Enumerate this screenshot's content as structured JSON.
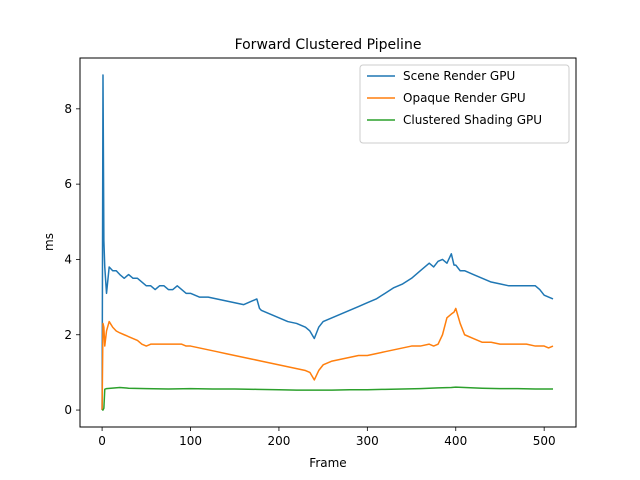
{
  "chart_data": {
    "type": "line",
    "title": "Forward Clustered Pipeline",
    "xlabel": "Frame",
    "ylabel": "ms",
    "xlim": [
      -25,
      536
    ],
    "ylim": [
      -0.45,
      9.35
    ],
    "xticks": [
      0,
      100,
      200,
      300,
      400,
      500
    ],
    "yticks": [
      0,
      2,
      4,
      6,
      8
    ],
    "grid": false,
    "legend_position": "top-right",
    "series": [
      {
        "name": "Scene Render GPU",
        "color": "#1f77b4",
        "x": [
          0,
          1,
          2,
          3,
          5,
          8,
          12,
          16,
          20,
          25,
          30,
          35,
          40,
          45,
          50,
          55,
          60,
          65,
          70,
          75,
          80,
          85,
          90,
          95,
          100,
          110,
          120,
          130,
          140,
          150,
          160,
          170,
          175,
          178,
          180,
          190,
          200,
          210,
          220,
          230,
          235,
          240,
          245,
          250,
          260,
          270,
          280,
          290,
          300,
          310,
          320,
          330,
          340,
          350,
          360,
          370,
          375,
          380,
          385,
          390,
          395,
          398,
          400,
          405,
          410,
          420,
          430,
          440,
          450,
          460,
          470,
          480,
          490,
          495,
          500,
          505,
          510
        ],
        "values": [
          0.0,
          8.9,
          4.5,
          3.8,
          3.1,
          3.8,
          3.7,
          3.7,
          3.6,
          3.5,
          3.6,
          3.5,
          3.5,
          3.4,
          3.3,
          3.3,
          3.2,
          3.3,
          3.3,
          3.2,
          3.2,
          3.3,
          3.2,
          3.1,
          3.1,
          3.0,
          3.0,
          2.95,
          2.9,
          2.85,
          2.8,
          2.9,
          2.95,
          2.7,
          2.65,
          2.55,
          2.45,
          2.35,
          2.3,
          2.2,
          2.1,
          1.9,
          2.2,
          2.35,
          2.45,
          2.55,
          2.65,
          2.75,
          2.85,
          2.95,
          3.1,
          3.25,
          3.35,
          3.5,
          3.7,
          3.9,
          3.8,
          3.95,
          4.0,
          3.9,
          4.15,
          3.85,
          3.85,
          3.7,
          3.7,
          3.6,
          3.5,
          3.4,
          3.35,
          3.3,
          3.3,
          3.3,
          3.3,
          3.2,
          3.05,
          3.0,
          2.95
        ]
      },
      {
        "name": "Opaque Render GPU",
        "color": "#ff7f0e",
        "x": [
          0,
          1,
          2,
          3,
          5,
          8,
          12,
          16,
          20,
          25,
          30,
          35,
          40,
          45,
          50,
          55,
          60,
          65,
          70,
          75,
          80,
          85,
          90,
          95,
          100,
          110,
          120,
          130,
          140,
          150,
          160,
          170,
          180,
          190,
          200,
          210,
          220,
          230,
          235,
          240,
          245,
          250,
          260,
          270,
          280,
          290,
          300,
          310,
          320,
          330,
          340,
          350,
          360,
          370,
          375,
          380,
          385,
          390,
          395,
          398,
          400,
          405,
          410,
          420,
          430,
          440,
          450,
          460,
          470,
          480,
          490,
          495,
          500,
          505,
          510
        ],
        "values": [
          0.0,
          2.3,
          2.2,
          1.7,
          2.1,
          2.35,
          2.2,
          2.1,
          2.05,
          2.0,
          1.95,
          1.9,
          1.85,
          1.75,
          1.7,
          1.75,
          1.75,
          1.75,
          1.75,
          1.75,
          1.75,
          1.75,
          1.75,
          1.7,
          1.7,
          1.65,
          1.6,
          1.55,
          1.5,
          1.45,
          1.4,
          1.35,
          1.3,
          1.25,
          1.2,
          1.15,
          1.1,
          1.05,
          1.0,
          0.8,
          1.05,
          1.2,
          1.3,
          1.35,
          1.4,
          1.45,
          1.45,
          1.5,
          1.55,
          1.6,
          1.65,
          1.7,
          1.7,
          1.75,
          1.7,
          1.75,
          2.0,
          2.45,
          2.55,
          2.6,
          2.7,
          2.3,
          2.0,
          1.9,
          1.8,
          1.8,
          1.75,
          1.75,
          1.75,
          1.75,
          1.7,
          1.7,
          1.7,
          1.65,
          1.7
        ]
      },
      {
        "name": "Clustered Shading GPU",
        "color": "#2ca02c",
        "x": [
          0,
          1,
          2,
          3,
          5,
          10,
          20,
          30,
          50,
          75,
          100,
          125,
          150,
          175,
          200,
          220,
          240,
          260,
          280,
          300,
          320,
          340,
          360,
          380,
          395,
          400,
          410,
          430,
          450,
          470,
          490,
          500,
          510
        ],
        "values": [
          0.0,
          0.0,
          0.05,
          0.55,
          0.57,
          0.58,
          0.6,
          0.58,
          0.57,
          0.56,
          0.57,
          0.56,
          0.56,
          0.55,
          0.54,
          0.53,
          0.53,
          0.53,
          0.54,
          0.54,
          0.55,
          0.56,
          0.57,
          0.59,
          0.6,
          0.61,
          0.6,
          0.58,
          0.57,
          0.57,
          0.56,
          0.56,
          0.56
        ]
      }
    ]
  }
}
